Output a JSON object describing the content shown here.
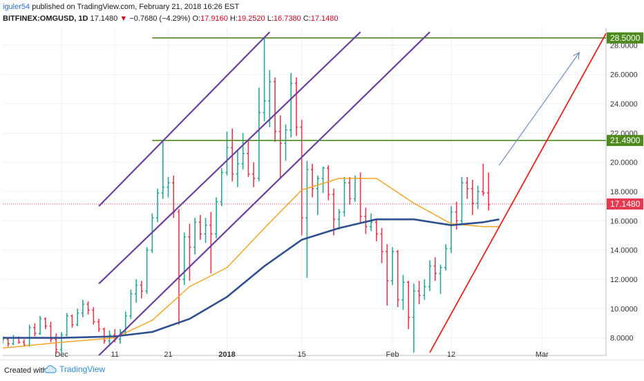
{
  "header": {
    "author": "iguler54",
    "published": "published on TradingView.com, February 21, 2018 16:26 EST",
    "symbol": "BITFINEX:OMGUSD, 1D",
    "last": "17.1480",
    "change": "−0.7680 (−4.29%)",
    "o_label": "O:",
    "o_value": "17.9160",
    "h_label": "H:",
    "h_value": "19.2520",
    "l_label": "L:",
    "l_value": "16.7380",
    "c_label": "C:",
    "c_value": "17.1480"
  },
  "footer": {
    "created_with": "Created with",
    "brand": "TradingView"
  },
  "colors": {
    "up": "#26a69a",
    "down": "#e53950",
    "sma_long": "#2f4f8f",
    "sma_short": "#f5a623",
    "channel": "#6a3fa0",
    "support": "#e8221b",
    "resistance": "#4e8a1e",
    "projection": "#6c8cc7",
    "price_marker": "#e53950"
  },
  "chart_data": {
    "type": "candlestick",
    "symbol": "BITFINEX:OMGUSD",
    "timeframe": "1D",
    "ylim": [
      6.8,
      29.2
    ],
    "y_ticks": [
      "8.0000",
      "10.0000",
      "12.0000",
      "14.0000",
      "16.0000",
      "18.0000",
      "20.0000",
      "22.0000",
      "24.0000",
      "26.0000",
      "28.0000"
    ],
    "y_tick_values": [
      8,
      10,
      12,
      14,
      16,
      18,
      20,
      22,
      24,
      26,
      28
    ],
    "x_start_date": "2017-11-20",
    "x_end_date": "2018-03-13",
    "x_ticks": [
      {
        "label": "Dec",
        "date": "2017-12-01",
        "bold": false
      },
      {
        "label": "11",
        "date": "2017-12-11",
        "bold": false
      },
      {
        "label": "21",
        "date": "2017-12-21",
        "bold": false
      },
      {
        "label": "2018",
        "date": "2018-01-01",
        "bold": true
      },
      {
        "label": "15",
        "date": "2018-01-15",
        "bold": false
      },
      {
        "label": "Feb",
        "date": "2018-02-01",
        "bold": false
      },
      {
        "label": "12",
        "date": "2018-02-12",
        "bold": false
      },
      {
        "label": "Mar",
        "date": "2018-03-01",
        "bold": false
      }
    ],
    "first_bar_date": "2017-11-20",
    "ohlc": [
      [
        7.8,
        8.1,
        7.6,
        7.9
      ],
      [
        7.9,
        8.0,
        7.4,
        7.6
      ],
      [
        7.6,
        8.2,
        7.5,
        8.0
      ],
      [
        8.0,
        8.1,
        7.6,
        7.7
      ],
      [
        7.7,
        7.9,
        7.4,
        7.5
      ],
      [
        7.5,
        8.9,
        7.4,
        8.7
      ],
      [
        8.7,
        9.0,
        8.1,
        8.3
      ],
      [
        8.3,
        9.5,
        8.2,
        9.3
      ],
      [
        9.3,
        9.4,
        8.6,
        8.8
      ],
      [
        8.8,
        9.1,
        7.7,
        7.9
      ],
      [
        7.9,
        8.3,
        6.9,
        7.2
      ],
      [
        7.2,
        8.4,
        7.0,
        8.2
      ],
      [
        8.2,
        9.7,
        8.1,
        9.5
      ],
      [
        9.5,
        9.6,
        8.7,
        8.9
      ],
      [
        8.9,
        10.0,
        8.8,
        9.7
      ],
      [
        9.7,
        10.6,
        9.4,
        10.3
      ],
      [
        10.3,
        10.5,
        9.6,
        9.9
      ],
      [
        9.9,
        10.1,
        8.9,
        9.1
      ],
      [
        9.1,
        9.3,
        8.4,
        8.6
      ],
      [
        8.6,
        8.7,
        7.6,
        7.8
      ],
      [
        7.8,
        8.5,
        7.5,
        8.2
      ],
      [
        8.2,
        8.6,
        7.7,
        7.9
      ],
      [
        7.9,
        8.6,
        7.6,
        8.4
      ],
      [
        8.4,
        9.8,
        8.2,
        9.5
      ],
      [
        9.5,
        11.3,
        9.3,
        11.0
      ],
      [
        11.0,
        12.0,
        10.4,
        11.6
      ],
      [
        11.6,
        11.9,
        10.7,
        11.2
      ],
      [
        11.2,
        14.2,
        11.0,
        14.0
      ],
      [
        14.0,
        16.5,
        13.8,
        16.2
      ],
      [
        16.2,
        18.2,
        15.9,
        17.9
      ],
      [
        17.9,
        21.4,
        17.5,
        18.3
      ],
      [
        18.3,
        19.0,
        17.6,
        18.6
      ],
      [
        18.6,
        19.1,
        16.2,
        16.6
      ],
      [
        16.6,
        16.8,
        8.9,
        12.0
      ],
      [
        12.0,
        15.2,
        11.6,
        14.9
      ],
      [
        14.9,
        15.8,
        11.9,
        14.2
      ],
      [
        14.2,
        16.2,
        13.7,
        15.9
      ],
      [
        15.9,
        16.4,
        14.7,
        15.1
      ],
      [
        15.1,
        16.2,
        14.5,
        15.7
      ],
      [
        15.7,
        16.6,
        12.4,
        15.1
      ],
      [
        15.1,
        17.6,
        14.8,
        17.3
      ],
      [
        17.3,
        19.6,
        17.0,
        19.3
      ],
      [
        19.3,
        22.1,
        19.1,
        21.0
      ],
      [
        21.0,
        22.3,
        18.7,
        19.2
      ],
      [
        19.2,
        20.8,
        18.3,
        19.9
      ],
      [
        19.9,
        22.0,
        19.5,
        20.6
      ],
      [
        20.6,
        21.5,
        19.0,
        19.2
      ],
      [
        19.2,
        20.0,
        18.3,
        18.9
      ],
      [
        18.9,
        25.1,
        18.7,
        23.4
      ],
      [
        23.4,
        28.5,
        22.8,
        24.2
      ],
      [
        24.2,
        26.3,
        22.4,
        25.5
      ],
      [
        25.5,
        25.8,
        21.4,
        22.1
      ],
      [
        22.1,
        23.2,
        18.9,
        21.3
      ],
      [
        21.3,
        22.6,
        20.1,
        22.2
      ],
      [
        22.2,
        26.1,
        21.7,
        25.4
      ],
      [
        25.4,
        25.8,
        21.8,
        22.4
      ],
      [
        22.4,
        22.9,
        15.0,
        16.2
      ],
      [
        16.2,
        20.1,
        12.1,
        19.5
      ],
      [
        19.5,
        19.9,
        17.6,
        18.2
      ],
      [
        18.2,
        19.1,
        16.4,
        18.9
      ],
      [
        18.9,
        19.7,
        17.9,
        19.6
      ],
      [
        19.6,
        19.8,
        17.4,
        17.8
      ],
      [
        17.8,
        18.2,
        15.0,
        16.1
      ],
      [
        16.1,
        16.8,
        15.4,
        16.6
      ],
      [
        16.6,
        19.0,
        16.3,
        18.6
      ],
      [
        18.6,
        19.0,
        17.1,
        17.5
      ],
      [
        17.5,
        19.1,
        17.3,
        18.9
      ],
      [
        18.9,
        19.3,
        15.9,
        16.3
      ],
      [
        16.3,
        16.9,
        15.1,
        15.6
      ],
      [
        15.6,
        16.5,
        15.3,
        15.9
      ],
      [
        15.9,
        16.1,
        14.6,
        15.1
      ],
      [
        15.1,
        15.5,
        13.1,
        13.9
      ],
      [
        13.9,
        14.4,
        10.2,
        11.9
      ],
      [
        11.9,
        14.2,
        11.6,
        13.9
      ],
      [
        13.9,
        14.0,
        10.1,
        10.6
      ],
      [
        10.6,
        12.3,
        9.9,
        11.8
      ],
      [
        11.8,
        11.9,
        8.6,
        9.4
      ],
      [
        9.4,
        11.7,
        7.0,
        11.2
      ],
      [
        11.2,
        11.9,
        10.3,
        10.9
      ],
      [
        10.9,
        12.0,
        10.6,
        11.5
      ],
      [
        11.5,
        13.3,
        11.2,
        12.9
      ],
      [
        12.9,
        13.5,
        11.9,
        12.4
      ],
      [
        12.4,
        13.0,
        11.0,
        12.8
      ],
      [
        12.8,
        14.4,
        12.6,
        14.1
      ],
      [
        14.1,
        17.0,
        13.8,
        16.6
      ],
      [
        16.6,
        17.3,
        15.4,
        16.0
      ],
      [
        16.0,
        19.0,
        15.8,
        18.6
      ],
      [
        18.6,
        19.0,
        17.5,
        18.2
      ],
      [
        18.2,
        18.8,
        16.4,
        17.2
      ],
      [
        17.2,
        18.4,
        16.8,
        18.0
      ],
      [
        18.0,
        19.9,
        17.7,
        17.9
      ],
      [
        17.9,
        19.3,
        16.7,
        17.1
      ]
    ],
    "series": [
      {
        "name": "",
        "type": "line",
        "x": [
          "2017-11-20",
          "2017-12-01",
          "2017-12-11",
          "2017-12-18",
          "2017-12-25",
          "2018-01-01",
          "2018-01-08",
          "2018-01-15",
          "2018-01-22",
          "2018-01-29",
          "2018-02-05",
          "2018-02-12",
          "2018-02-18",
          "2018-02-21"
        ],
        "y": [
          7.3,
          7.7,
          8.0,
          9.2,
          11.5,
          12.8,
          15.5,
          18.1,
          18.9,
          18.9,
          17.2,
          15.8,
          15.6,
          15.6
        ]
      },
      {
        "name": "",
        "type": "line",
        "x": [
          "2017-11-20",
          "2017-12-01",
          "2017-12-11",
          "2017-12-18",
          "2017-12-25",
          "2018-01-01",
          "2018-01-08",
          "2018-01-15",
          "2018-01-22",
          "2018-01-29",
          "2018-02-05",
          "2018-02-12",
          "2018-02-18",
          "2018-02-21"
        ],
        "y": [
          8.0,
          8.0,
          8.1,
          8.4,
          9.3,
          10.8,
          12.9,
          14.7,
          15.5,
          16.1,
          16.1,
          15.7,
          15.9,
          16.1
        ]
      }
    ],
    "annotations": [
      {
        "type": "horizontal",
        "from": "2017-12-18",
        "to": "2018-03-13",
        "y": 28.5,
        "label": "28.5000"
      },
      {
        "type": "horizontal",
        "from": "2017-12-18",
        "to": "2018-03-13",
        "y": 21.49,
        "label": "21.4900"
      },
      {
        "type": "trendline",
        "role": "channel",
        "points": [
          [
            "2017-12-08",
            17.0
          ],
          [
            "2018-01-09",
            28.9
          ]
        ]
      },
      {
        "type": "trendline",
        "role": "channel",
        "points": [
          [
            "2017-12-08",
            11.7
          ],
          [
            "2018-01-26",
            28.9
          ]
        ]
      },
      {
        "type": "trendline",
        "role": "channel",
        "points": [
          [
            "2017-12-08",
            6.8
          ],
          [
            "2018-02-08",
            28.9
          ]
        ]
      },
      {
        "type": "trendline",
        "role": "support",
        "points": [
          [
            "2018-02-08",
            7.0
          ],
          [
            "2018-03-13",
            28.8
          ]
        ]
      },
      {
        "type": "arrow",
        "points": [
          [
            "2018-02-21",
            19.8
          ],
          [
            "2018-03-08",
            27.5
          ]
        ]
      }
    ],
    "last_price": {
      "value": 17.148,
      "label": "17.1480"
    },
    "grid": true,
    "legend": "none"
  }
}
